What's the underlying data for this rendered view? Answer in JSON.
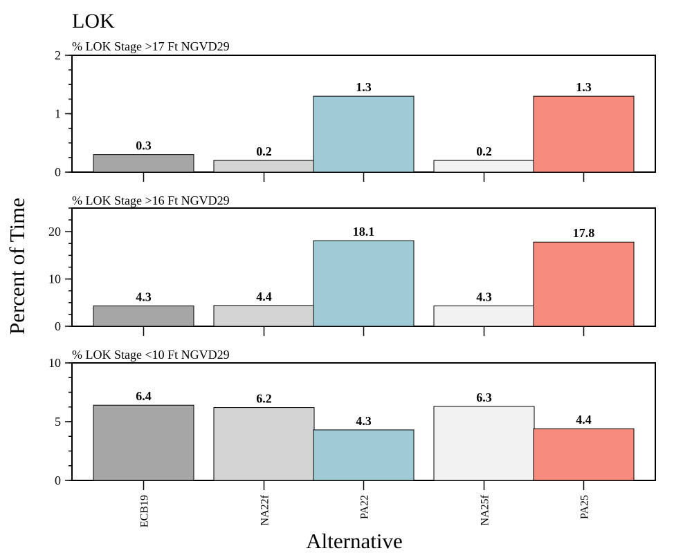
{
  "chart_data": {
    "type": "bar",
    "title": "LOK",
    "xlabel": "Alternative",
    "ylabel": "Percent of Time",
    "categories": [
      "ECB19",
      "NA22f",
      "PA22",
      "NA25f",
      "PA25"
    ],
    "colors": [
      "#a6a6a6",
      "#d4d4d4",
      "#9ecbd6",
      "#f2f2f2",
      "#f78b7e"
    ],
    "grid": false,
    "legend": "none",
    "panels": [
      {
        "subtitle": "% LOK Stage >17 Ft NGVD29",
        "values": [
          0.3,
          0.2,
          1.3,
          0.2,
          1.3
        ],
        "ylim": [
          0,
          2
        ],
        "major_ticks": [
          0,
          1,
          2
        ],
        "minor_step": 0.25
      },
      {
        "subtitle": "% LOK Stage >16 Ft NGVD29",
        "values": [
          4.3,
          4.4,
          18.1,
          4.3,
          17.8
        ],
        "ylim": [
          0,
          25
        ],
        "major_ticks": [
          0,
          10,
          20
        ],
        "minor_step": 2.5
      },
      {
        "subtitle": "% LOK Stage <10 Ft NGVD29",
        "values": [
          6.4,
          6.2,
          4.3,
          6.3,
          4.4
        ],
        "ylim": [
          0,
          10
        ],
        "major_ticks": [
          0,
          5,
          10
        ],
        "minor_step": 1.25
      }
    ]
  }
}
